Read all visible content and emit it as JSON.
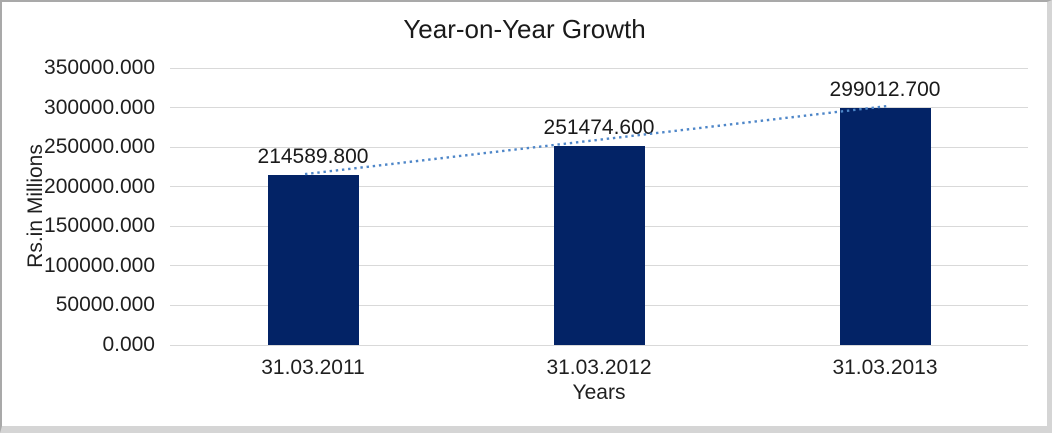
{
  "chart_data": {
    "type": "bar",
    "title": "Year-on-Year Growth",
    "xlabel": "Years",
    "ylabel": "Rs.in Millions",
    "categories": [
      "31.03.2011",
      "31.03.2012",
      "31.03.2013"
    ],
    "values": [
      214589.8,
      251474.6,
      299012.7
    ],
    "data_labels": [
      "214589.800",
      "251474.600",
      "299012.700"
    ],
    "ylim": [
      0,
      350000
    ],
    "ytick_step": 50000,
    "ytick_labels": [
      "0.000",
      "50000.000",
      "100000.000",
      "150000.000",
      "200000.000",
      "250000.000",
      "300000.000",
      "350000.000"
    ],
    "grid": true,
    "legend_position": "none",
    "bar_color": "#032366",
    "gridline_color": "#d9d9d9",
    "trendline": {
      "type": "linear",
      "style": "dotted",
      "color": "#4e86c8",
      "from_value": 214589.8,
      "to_value": 299012.7
    }
  }
}
